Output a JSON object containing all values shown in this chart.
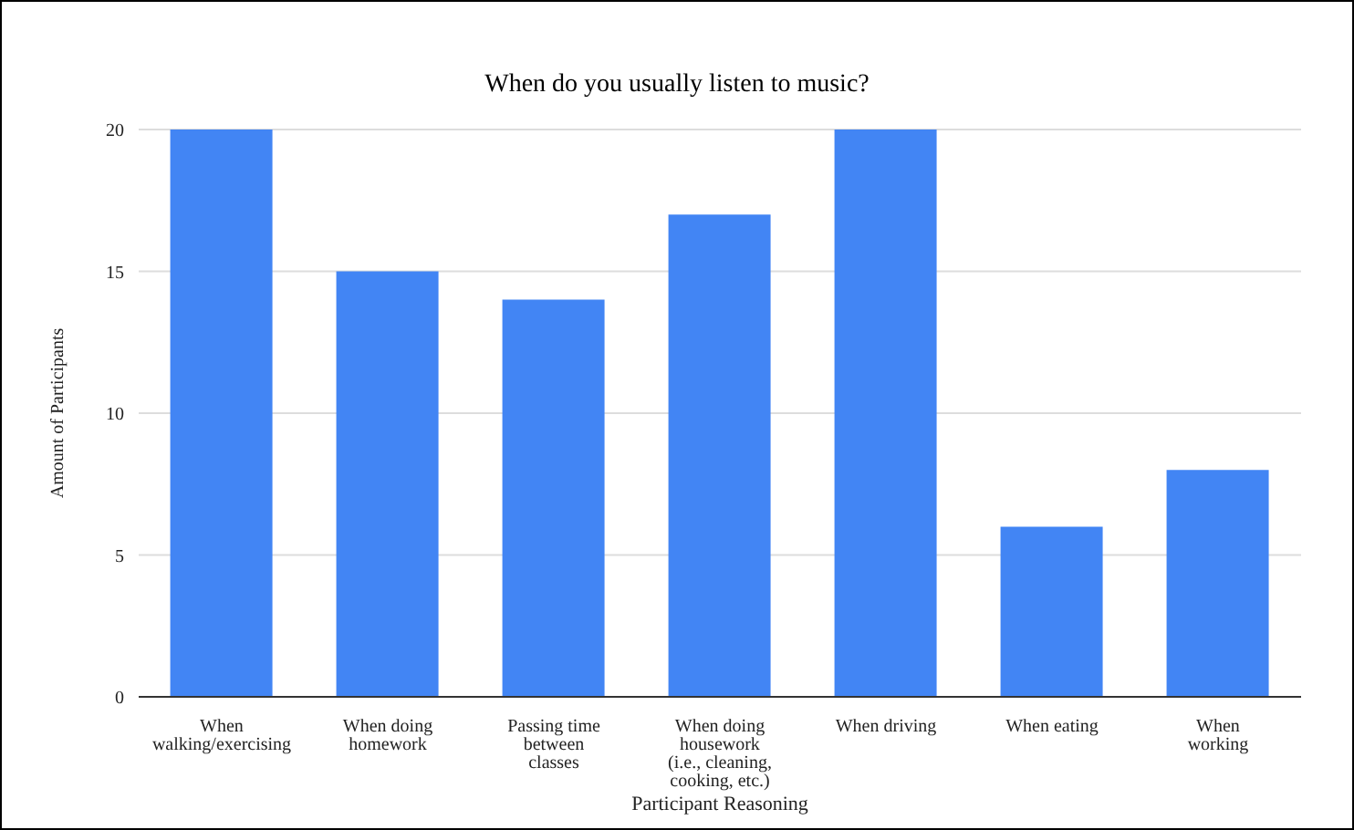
{
  "chart_data": {
    "type": "bar",
    "title": "When do you usually listen to music?",
    "xlabel": "Participant Reasoning",
    "ylabel": "Amount of Participants",
    "categories": [
      "When walking/exercising",
      "When doing homework",
      "Passing time between classes",
      "When doing housework (i.e., cleaning, cooking, etc.)",
      "When driving",
      "When eating",
      "When working"
    ],
    "values": [
      20,
      15,
      14,
      17,
      20,
      6,
      8
    ],
    "color": "#4285f4",
    "ylim": [
      0,
      20
    ],
    "yticks": [
      0,
      5,
      10,
      15,
      20
    ],
    "grid": "y",
    "legend": false
  }
}
